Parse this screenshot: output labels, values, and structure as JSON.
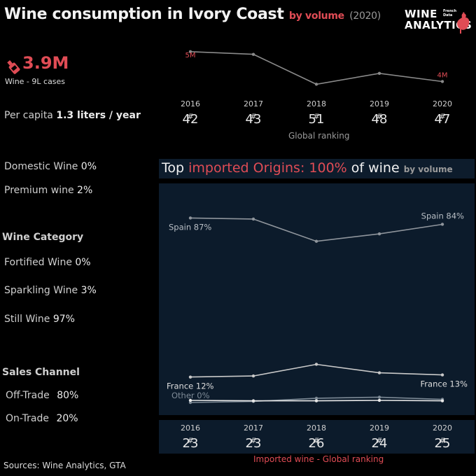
{
  "header": {
    "title": "Wine consumption in Ivory Coast",
    "by_volume": "by volume",
    "year": "(2020)"
  },
  "logo": {
    "line1": "WINE",
    "line2": "ANALYTICS",
    "small": "French Data"
  },
  "kpi": {
    "value": "3.9M",
    "subtitle": "Wine - 9L cases",
    "icon": "wine-bottle-icon"
  },
  "per_capita": {
    "label": "Per capita",
    "value": "1.3 liters / year"
  },
  "years": [
    "2016",
    "2017",
    "2018",
    "2019",
    "2020"
  ],
  "global_ranking": {
    "ranks": [
      "42",
      "43",
      "51",
      "48",
      "47"
    ],
    "label": "Global ranking",
    "hash": "#"
  },
  "metrics": {
    "domestic": {
      "label": "Domestic Wine",
      "value": "0%"
    },
    "premium": {
      "label": "Premium wine",
      "value": "2%"
    }
  },
  "wine_category": {
    "title": "Wine Category",
    "items": [
      {
        "label": "Fortified Wine",
        "value": "0%"
      },
      {
        "label": "Sparkling Wine",
        "value": "3%"
      },
      {
        "label": "Still Wine",
        "value": "97%"
      }
    ]
  },
  "sales_channel": {
    "title": "Sales Channel",
    "items": [
      {
        "label": "Off-Trade",
        "value": "80%"
      },
      {
        "label": "On-Trade",
        "value": "20%"
      }
    ]
  },
  "banner": {
    "part1": "Top ",
    "part2": "imported Origins: 100%",
    "part3": " of wine ",
    "part4": "by volume"
  },
  "imported_ranking": {
    "ranks": [
      "23",
      "23",
      "26",
      "24",
      "25"
    ],
    "label": "Imported wine - Global ranking"
  },
  "sources": "Sources: Wine Analytics, GTA",
  "colors": {
    "accent": "#e04c55",
    "panel": "#0c1b2b",
    "line_volume": "#8a8a8a",
    "line_spain": "#8f959c",
    "line_france": "#c9c9c9",
    "line_other": "#e8e8e8"
  },
  "chart_data": [
    {
      "type": "line",
      "x": [
        "2016",
        "2017",
        "2018",
        "2019",
        "2020"
      ],
      "series": [
        {
          "values": [
            5.0,
            4.9,
            3.8,
            4.2,
            3.9
          ]
        }
      ],
      "first_label": "5M",
      "last_label": "4M",
      "ylim": [
        3.5,
        5.2
      ]
    },
    {
      "type": "line",
      "x": [
        "2016",
        "2017",
        "2018",
        "2019",
        "2020"
      ],
      "ylim": [
        0,
        100
      ],
      "series": [
        {
          "name": "Spain",
          "values": [
            87,
            86.5,
            76,
            79.5,
            84
          ],
          "first_label": "Spain 87%",
          "last_label": "Spain 84%"
        },
        {
          "name": "France",
          "values": [
            12,
            12.5,
            18,
            14,
            13
          ],
          "first_label": "France 12%",
          "last_label": "France 13%"
        },
        {
          "name": "Other",
          "values": [
            0,
            0.5,
            2,
            2.5,
            1.5
          ],
          "first_label": "Other 0%",
          "last_label": ""
        },
        {
          "values": [
            1,
            0.8,
            0.8,
            1,
            0.8
          ]
        }
      ]
    }
  ]
}
